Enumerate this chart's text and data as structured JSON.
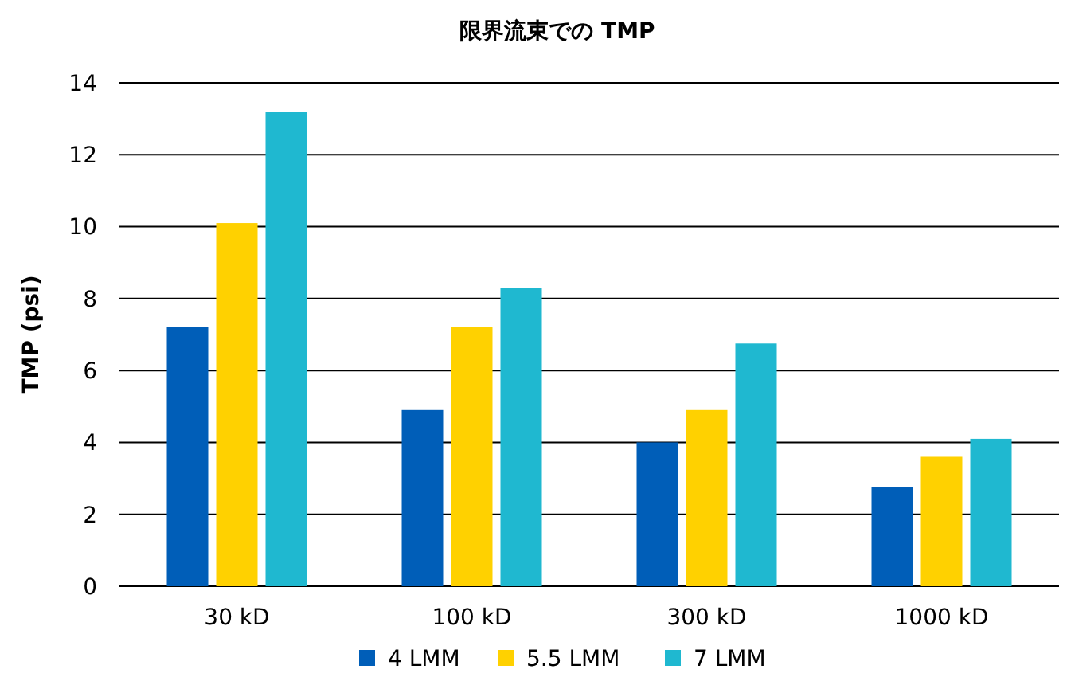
{
  "chart_data": {
    "type": "bar",
    "title": "限界流束での TMP",
    "ylabel": "TMP (psi)",
    "categories": [
      "30 kD",
      "100 kD",
      "300 kD",
      "1000 kD"
    ],
    "series": [
      {
        "name": "4 LMM",
        "color": "#005eb8",
        "values": [
          7.2,
          4.9,
          4.0,
          2.75
        ]
      },
      {
        "name": "5.5 LMM",
        "color": "#ffd100",
        "values": [
          10.1,
          7.2,
          4.9,
          3.6
        ]
      },
      {
        "name": "7 LMM",
        "color": "#1fb8d0",
        "values": [
          13.2,
          8.3,
          6.75,
          4.1
        ]
      }
    ],
    "ylim": [
      0,
      14
    ],
    "yticks": [
      0,
      2,
      4,
      6,
      8,
      10,
      12,
      14
    ],
    "grid": "y",
    "legend": "bottom"
  }
}
